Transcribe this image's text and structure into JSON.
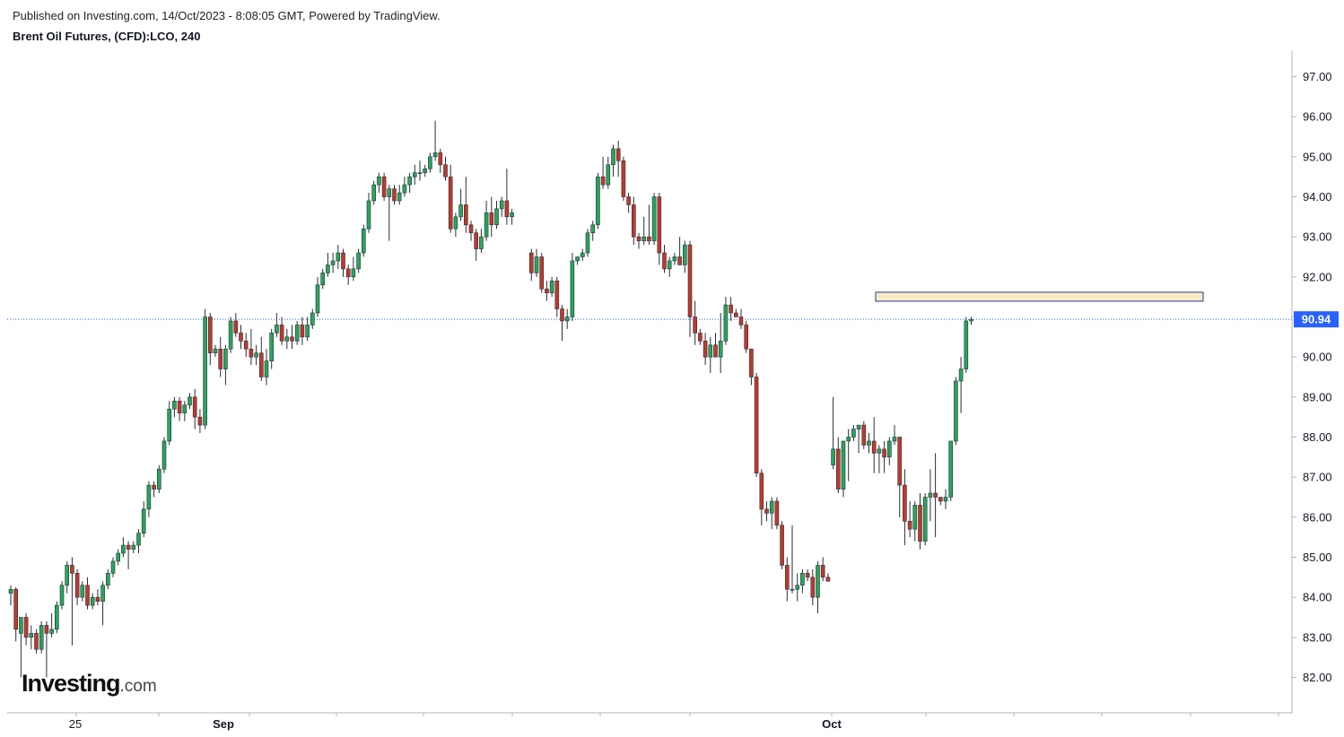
{
  "header": {
    "published": "Published on Investing.com, 14/Oct/2023 - 8:08:05 GMT, Powered by TradingView.",
    "symbol": "Brent Oil Futures, (CFD):LCO, 240"
  },
  "logo": {
    "brand": "Investing",
    "suffix": ".com"
  },
  "colors": {
    "up": "#26a65b",
    "down": "#c0392b",
    "current_line": "#2962ff",
    "zone_fill": "#fbe9c8",
    "zone_border": "#1f3a93",
    "price_tag": "#2962ff"
  },
  "chart_data": {
    "type": "candlestick",
    "title": "Brent Oil Futures, (CFD):LCO, 240",
    "ylim": [
      81.2,
      97.7
    ],
    "y_ticks": [
      "82.00",
      "83.00",
      "84.00",
      "85.00",
      "86.00",
      "87.00",
      "88.00",
      "89.00",
      "90.00",
      "91.00",
      "92.00",
      "93.00",
      "94.00",
      "95.00",
      "96.00",
      "97.00"
    ],
    "x_tick_labels": [
      "25",
      "Sep",
      "Oct"
    ],
    "current_price": 90.94,
    "current_price_label": "90.94",
    "resistance_zone": [
      91.35,
      91.55
    ],
    "candles": [
      {
        "o": 84.1,
        "h": 84.3,
        "l": 83.8,
        "c": 84.2
      },
      {
        "o": 84.2,
        "h": 84.25,
        "l": 82.9,
        "c": 83.2
      },
      {
        "o": 83.1,
        "h": 83.5,
        "l": 82.0,
        "c": 83.5
      },
      {
        "o": 83.5,
        "h": 83.6,
        "l": 82.8,
        "c": 83.0
      },
      {
        "o": 83.0,
        "h": 83.3,
        "l": 82.7,
        "c": 83.1
      },
      {
        "o": 83.1,
        "h": 83.2,
        "l": 82.6,
        "c": 82.7
      },
      {
        "o": 82.7,
        "h": 83.4,
        "l": 82.6,
        "c": 83.3
      },
      {
        "o": 83.3,
        "h": 83.4,
        "l": 82.0,
        "c": 83.1
      },
      {
        "o": 83.1,
        "h": 83.6,
        "l": 83.0,
        "c": 83.2
      },
      {
        "o": 83.2,
        "h": 83.9,
        "l": 83.1,
        "c": 83.8
      },
      {
        "o": 83.8,
        "h": 84.4,
        "l": 83.7,
        "c": 84.3
      },
      {
        "o": 84.3,
        "h": 84.9,
        "l": 84.1,
        "c": 84.8
      },
      {
        "o": 84.8,
        "h": 85.0,
        "l": 82.8,
        "c": 84.6
      },
      {
        "o": 84.6,
        "h": 84.7,
        "l": 83.8,
        "c": 84.0
      },
      {
        "o": 84.0,
        "h": 84.4,
        "l": 83.9,
        "c": 84.3
      },
      {
        "o": 84.3,
        "h": 84.5,
        "l": 83.7,
        "c": 83.8
      },
      {
        "o": 83.8,
        "h": 84.1,
        "l": 83.7,
        "c": 84.0
      },
      {
        "o": 84.0,
        "h": 84.2,
        "l": 83.8,
        "c": 83.9
      },
      {
        "o": 83.9,
        "h": 84.4,
        "l": 83.3,
        "c": 84.3
      },
      {
        "o": 84.3,
        "h": 84.7,
        "l": 84.2,
        "c": 84.6
      },
      {
        "o": 84.6,
        "h": 85.0,
        "l": 84.5,
        "c": 84.9
      },
      {
        "o": 84.9,
        "h": 85.2,
        "l": 84.8,
        "c": 85.1
      },
      {
        "o": 85.1,
        "h": 85.5,
        "l": 85.0,
        "c": 85.3
      },
      {
        "o": 85.3,
        "h": 85.4,
        "l": 84.7,
        "c": 85.2
      },
      {
        "o": 85.2,
        "h": 85.4,
        "l": 85.1,
        "c": 85.3
      },
      {
        "o": 85.3,
        "h": 85.7,
        "l": 85.1,
        "c": 85.6
      },
      {
        "o": 85.6,
        "h": 86.4,
        "l": 85.5,
        "c": 86.2
      },
      {
        "o": 86.2,
        "h": 86.9,
        "l": 86.0,
        "c": 86.8
      },
      {
        "o": 86.8,
        "h": 86.9,
        "l": 86.5,
        "c": 86.7
      },
      {
        "o": 86.7,
        "h": 87.3,
        "l": 86.6,
        "c": 87.2
      },
      {
        "o": 87.2,
        "h": 88.0,
        "l": 87.1,
        "c": 87.9
      },
      {
        "o": 87.9,
        "h": 88.9,
        "l": 87.8,
        "c": 88.7
      },
      {
        "o": 88.7,
        "h": 89.0,
        "l": 88.5,
        "c": 88.9
      },
      {
        "o": 88.9,
        "h": 89.0,
        "l": 88.4,
        "c": 88.6
      },
      {
        "o": 88.6,
        "h": 88.9,
        "l": 88.4,
        "c": 88.8
      },
      {
        "o": 88.8,
        "h": 89.1,
        "l": 88.7,
        "c": 89.0
      },
      {
        "o": 89.0,
        "h": 89.2,
        "l": 88.2,
        "c": 88.5
      },
      {
        "o": 88.5,
        "h": 88.7,
        "l": 88.1,
        "c": 88.3
      },
      {
        "o": 88.3,
        "h": 91.2,
        "l": 88.2,
        "c": 91.0
      },
      {
        "o": 91.0,
        "h": 91.1,
        "l": 89.8,
        "c": 90.1
      },
      {
        "o": 90.1,
        "h": 90.3,
        "l": 90.0,
        "c": 90.2
      },
      {
        "o": 90.2,
        "h": 90.5,
        "l": 89.5,
        "c": 89.7
      },
      {
        "o": 89.7,
        "h": 90.3,
        "l": 89.3,
        "c": 90.2
      },
      {
        "o": 90.2,
        "h": 91.0,
        "l": 90.1,
        "c": 90.9
      },
      {
        "o": 90.9,
        "h": 91.1,
        "l": 90.5,
        "c": 90.6
      },
      {
        "o": 90.6,
        "h": 90.8,
        "l": 90.2,
        "c": 90.4
      },
      {
        "o": 90.4,
        "h": 90.6,
        "l": 90.0,
        "c": 90.2
      },
      {
        "o": 90.2,
        "h": 90.7,
        "l": 89.8,
        "c": 90.0
      },
      {
        "o": 90.0,
        "h": 90.3,
        "l": 89.8,
        "c": 90.1
      },
      {
        "o": 90.1,
        "h": 90.5,
        "l": 89.4,
        "c": 89.5
      },
      {
        "o": 89.5,
        "h": 90.2,
        "l": 89.3,
        "c": 89.9
      },
      {
        "o": 89.9,
        "h": 90.7,
        "l": 89.7,
        "c": 90.6
      },
      {
        "o": 90.6,
        "h": 91.1,
        "l": 90.5,
        "c": 90.8
      },
      {
        "o": 90.8,
        "h": 91.0,
        "l": 90.3,
        "c": 90.4
      },
      {
        "o": 90.4,
        "h": 90.7,
        "l": 90.2,
        "c": 90.5
      },
      {
        "o": 90.5,
        "h": 90.8,
        "l": 90.2,
        "c": 90.4
      },
      {
        "o": 90.4,
        "h": 90.9,
        "l": 90.3,
        "c": 90.8
      },
      {
        "o": 90.8,
        "h": 91.0,
        "l": 90.3,
        "c": 90.5
      },
      {
        "o": 90.5,
        "h": 91.0,
        "l": 90.4,
        "c": 90.8
      },
      {
        "o": 90.8,
        "h": 91.2,
        "l": 90.7,
        "c": 91.1
      },
      {
        "o": 91.1,
        "h": 92.0,
        "l": 91.0,
        "c": 91.8
      },
      {
        "o": 91.8,
        "h": 92.2,
        "l": 91.7,
        "c": 92.1
      },
      {
        "o": 92.1,
        "h": 92.6,
        "l": 92.0,
        "c": 92.3
      },
      {
        "o": 92.3,
        "h": 92.6,
        "l": 92.1,
        "c": 92.4
      },
      {
        "o": 92.4,
        "h": 92.8,
        "l": 92.2,
        "c": 92.6
      },
      {
        "o": 92.6,
        "h": 92.7,
        "l": 92.0,
        "c": 92.2
      },
      {
        "o": 92.2,
        "h": 92.3,
        "l": 91.8,
        "c": 92.0
      },
      {
        "o": 92.0,
        "h": 92.5,
        "l": 91.9,
        "c": 92.2
      },
      {
        "o": 92.2,
        "h": 92.7,
        "l": 92.1,
        "c": 92.6
      },
      {
        "o": 92.6,
        "h": 93.3,
        "l": 92.5,
        "c": 93.2
      },
      {
        "o": 93.2,
        "h": 94.1,
        "l": 93.1,
        "c": 93.9
      },
      {
        "o": 93.9,
        "h": 94.4,
        "l": 93.8,
        "c": 94.3
      },
      {
        "o": 94.3,
        "h": 94.6,
        "l": 94.1,
        "c": 94.5
      },
      {
        "o": 94.5,
        "h": 94.6,
        "l": 93.9,
        "c": 94.0
      },
      {
        "o": 94.0,
        "h": 94.3,
        "l": 92.9,
        "c": 94.2
      },
      {
        "o": 94.2,
        "h": 94.3,
        "l": 93.8,
        "c": 93.9
      },
      {
        "o": 93.9,
        "h": 94.3,
        "l": 93.8,
        "c": 94.1
      },
      {
        "o": 94.1,
        "h": 94.5,
        "l": 94.0,
        "c": 94.3
      },
      {
        "o": 94.3,
        "h": 94.6,
        "l": 94.1,
        "c": 94.5
      },
      {
        "o": 94.5,
        "h": 94.8,
        "l": 94.3,
        "c": 94.6
      },
      {
        "o": 94.6,
        "h": 94.9,
        "l": 94.4,
        "c": 94.6
      },
      {
        "o": 94.6,
        "h": 94.8,
        "l": 94.5,
        "c": 94.7
      },
      {
        "o": 94.7,
        "h": 95.1,
        "l": 94.6,
        "c": 95.0
      },
      {
        "o": 95.0,
        "h": 95.9,
        "l": 94.9,
        "c": 95.1
      },
      {
        "o": 95.1,
        "h": 95.2,
        "l": 94.6,
        "c": 94.8
      },
      {
        "o": 94.8,
        "h": 95.0,
        "l": 94.4,
        "c": 94.5
      },
      {
        "o": 94.5,
        "h": 94.8,
        "l": 93.1,
        "c": 93.2
      },
      {
        "o": 93.2,
        "h": 93.6,
        "l": 93.0,
        "c": 93.5
      },
      {
        "o": 93.5,
        "h": 94.2,
        "l": 93.4,
        "c": 93.8
      },
      {
        "o": 93.8,
        "h": 94.5,
        "l": 93.1,
        "c": 93.3
      },
      {
        "o": 93.3,
        "h": 93.4,
        "l": 92.9,
        "c": 93.1
      },
      {
        "o": 93.1,
        "h": 93.2,
        "l": 92.4,
        "c": 92.7
      },
      {
        "o": 92.7,
        "h": 93.2,
        "l": 92.6,
        "c": 93.0
      },
      {
        "o": 93.0,
        "h": 93.9,
        "l": 92.9,
        "c": 93.6
      },
      {
        "o": 93.6,
        "h": 94.0,
        "l": 93.0,
        "c": 93.3
      },
      {
        "o": 93.3,
        "h": 93.9,
        "l": 93.2,
        "c": 93.7
      },
      {
        "o": 93.7,
        "h": 94.0,
        "l": 93.5,
        "c": 93.9
      },
      {
        "o": 93.9,
        "h": 94.7,
        "l": 93.3,
        "c": 93.5
      },
      {
        "o": 93.5,
        "h": 93.7,
        "l": 93.3,
        "c": 93.6
      },
      {
        "o": 92.6,
        "h": 92.7,
        "l": 91.9,
        "c": 92.1
      },
      {
        "o": 92.1,
        "h": 92.7,
        "l": 92.0,
        "c": 92.5
      },
      {
        "o": 92.5,
        "h": 92.6,
        "l": 91.6,
        "c": 91.7
      },
      {
        "o": 91.7,
        "h": 91.9,
        "l": 91.4,
        "c": 91.6
      },
      {
        "o": 91.6,
        "h": 92.0,
        "l": 91.5,
        "c": 91.9
      },
      {
        "o": 91.9,
        "h": 92.0,
        "l": 91.0,
        "c": 91.2
      },
      {
        "o": 91.2,
        "h": 91.3,
        "l": 90.4,
        "c": 90.9
      },
      {
        "o": 90.9,
        "h": 91.2,
        "l": 90.7,
        "c": 91.0
      },
      {
        "o": 91.0,
        "h": 92.6,
        "l": 90.9,
        "c": 92.4
      },
      {
        "o": 92.4,
        "h": 92.5,
        "l": 92.3,
        "c": 92.5
      },
      {
        "o": 92.5,
        "h": 92.7,
        "l": 92.4,
        "c": 92.6
      },
      {
        "o": 92.6,
        "h": 93.2,
        "l": 92.5,
        "c": 93.1
      },
      {
        "o": 93.1,
        "h": 93.4,
        "l": 92.9,
        "c": 93.3
      },
      {
        "o": 93.3,
        "h": 94.6,
        "l": 93.2,
        "c": 94.5
      },
      {
        "o": 94.5,
        "h": 95.0,
        "l": 94.2,
        "c": 94.3
      },
      {
        "o": 94.3,
        "h": 95.0,
        "l": 94.2,
        "c": 94.8
      },
      {
        "o": 94.8,
        "h": 95.3,
        "l": 94.5,
        "c": 95.2
      },
      {
        "o": 95.2,
        "h": 95.4,
        "l": 94.5,
        "c": 94.9
      },
      {
        "o": 94.9,
        "h": 95.0,
        "l": 93.9,
        "c": 94.0
      },
      {
        "o": 94.0,
        "h": 94.1,
        "l": 93.6,
        "c": 93.8
      },
      {
        "o": 93.8,
        "h": 94.0,
        "l": 92.8,
        "c": 93.0
      },
      {
        "o": 93.0,
        "h": 93.1,
        "l": 92.7,
        "c": 92.9
      },
      {
        "o": 92.9,
        "h": 93.5,
        "l": 92.8,
        "c": 93.0
      },
      {
        "o": 93.0,
        "h": 93.8,
        "l": 92.8,
        "c": 92.9
      },
      {
        "o": 92.9,
        "h": 94.1,
        "l": 92.8,
        "c": 94.0
      },
      {
        "o": 94.0,
        "h": 94.1,
        "l": 92.3,
        "c": 92.6
      },
      {
        "o": 92.6,
        "h": 92.8,
        "l": 92.1,
        "c": 92.2
      },
      {
        "o": 92.2,
        "h": 92.5,
        "l": 92.0,
        "c": 92.4
      },
      {
        "o": 92.4,
        "h": 92.6,
        "l": 92.3,
        "c": 92.5
      },
      {
        "o": 92.5,
        "h": 93.0,
        "l": 92.3,
        "c": 92.3
      },
      {
        "o": 92.3,
        "h": 92.9,
        "l": 92.1,
        "c": 92.8
      },
      {
        "o": 92.8,
        "h": 92.9,
        "l": 90.5,
        "c": 91.0
      },
      {
        "o": 91.0,
        "h": 91.4,
        "l": 90.3,
        "c": 90.6
      },
      {
        "o": 90.6,
        "h": 90.7,
        "l": 90.3,
        "c": 90.4
      },
      {
        "o": 90.4,
        "h": 90.6,
        "l": 89.8,
        "c": 90.0
      },
      {
        "o": 90.0,
        "h": 90.5,
        "l": 89.6,
        "c": 90.3
      },
      {
        "o": 90.3,
        "h": 90.6,
        "l": 90.0,
        "c": 90.0
      },
      {
        "o": 90.0,
        "h": 91.1,
        "l": 89.6,
        "c": 90.4
      },
      {
        "o": 90.4,
        "h": 91.5,
        "l": 90.3,
        "c": 91.3
      },
      {
        "o": 91.3,
        "h": 91.5,
        "l": 90.9,
        "c": 91.1
      },
      {
        "o": 91.1,
        "h": 91.2,
        "l": 91.0,
        "c": 91.0
      },
      {
        "o": 91.0,
        "h": 91.2,
        "l": 90.7,
        "c": 90.8
      },
      {
        "o": 90.8,
        "h": 90.9,
        "l": 90.1,
        "c": 90.2
      },
      {
        "o": 90.2,
        "h": 90.2,
        "l": 89.3,
        "c": 89.5
      },
      {
        "o": 89.5,
        "h": 89.6,
        "l": 87.0,
        "c": 87.1
      },
      {
        "o": 87.1,
        "h": 87.2,
        "l": 85.8,
        "c": 86.2
      },
      {
        "o": 86.2,
        "h": 86.4,
        "l": 85.9,
        "c": 86.1
      },
      {
        "o": 86.1,
        "h": 86.5,
        "l": 85.7,
        "c": 86.4
      },
      {
        "o": 86.4,
        "h": 86.5,
        "l": 85.7,
        "c": 85.8
      },
      {
        "o": 85.8,
        "h": 85.9,
        "l": 84.7,
        "c": 84.8
      },
      {
        "o": 84.8,
        "h": 85.0,
        "l": 83.9,
        "c": 84.2
      },
      {
        "o": 84.2,
        "h": 85.8,
        "l": 84.1,
        "c": 84.2
      },
      {
        "o": 84.2,
        "h": 84.6,
        "l": 83.9,
        "c": 84.3
      },
      {
        "o": 84.3,
        "h": 84.7,
        "l": 84.1,
        "c": 84.6
      },
      {
        "o": 84.6,
        "h": 84.7,
        "l": 84.4,
        "c": 84.5
      },
      {
        "o": 84.5,
        "h": 84.7,
        "l": 83.8,
        "c": 84.0
      },
      {
        "o": 84.0,
        "h": 84.9,
        "l": 83.6,
        "c": 84.8
      },
      {
        "o": 84.8,
        "h": 85.0,
        "l": 84.4,
        "c": 84.5
      },
      {
        "o": 84.5,
        "h": 84.6,
        "l": 84.4,
        "c": 84.4
      },
      {
        "o": 87.3,
        "h": 89.0,
        "l": 87.2,
        "c": 87.7
      },
      {
        "o": 87.7,
        "h": 88.0,
        "l": 86.6,
        "c": 86.7
      },
      {
        "o": 86.7,
        "h": 87.9,
        "l": 86.5,
        "c": 87.9
      },
      {
        "o": 87.9,
        "h": 88.2,
        "l": 86.9,
        "c": 88.0
      },
      {
        "o": 88.0,
        "h": 88.3,
        "l": 87.9,
        "c": 88.2
      },
      {
        "o": 88.2,
        "h": 88.3,
        "l": 87.6,
        "c": 88.3
      },
      {
        "o": 88.3,
        "h": 88.4,
        "l": 87.7,
        "c": 87.8
      },
      {
        "o": 87.8,
        "h": 88.1,
        "l": 87.6,
        "c": 87.9
      },
      {
        "o": 87.9,
        "h": 88.5,
        "l": 87.1,
        "c": 87.6
      },
      {
        "o": 87.6,
        "h": 87.8,
        "l": 87.1,
        "c": 87.7
      },
      {
        "o": 87.7,
        "h": 87.9,
        "l": 87.1,
        "c": 87.5
      },
      {
        "o": 87.5,
        "h": 88.0,
        "l": 87.3,
        "c": 87.9
      },
      {
        "o": 87.9,
        "h": 88.3,
        "l": 87.8,
        "c": 88.0
      },
      {
        "o": 88.0,
        "h": 88.0,
        "l": 86.0,
        "c": 86.8
      },
      {
        "o": 86.8,
        "h": 87.2,
        "l": 85.3,
        "c": 85.9
      },
      {
        "o": 85.9,
        "h": 86.4,
        "l": 85.5,
        "c": 85.7
      },
      {
        "o": 85.7,
        "h": 86.4,
        "l": 85.4,
        "c": 86.3
      },
      {
        "o": 86.3,
        "h": 86.6,
        "l": 85.2,
        "c": 85.4
      },
      {
        "o": 85.4,
        "h": 86.6,
        "l": 85.3,
        "c": 86.5
      },
      {
        "o": 86.5,
        "h": 87.2,
        "l": 85.9,
        "c": 86.6
      },
      {
        "o": 86.6,
        "h": 87.6,
        "l": 85.5,
        "c": 86.5
      },
      {
        "o": 86.5,
        "h": 86.5,
        "l": 86.3,
        "c": 86.4
      },
      {
        "o": 86.4,
        "h": 86.7,
        "l": 86.2,
        "c": 86.5
      },
      {
        "o": 86.5,
        "h": 87.9,
        "l": 86.4,
        "c": 87.9
      },
      {
        "o": 87.9,
        "h": 89.5,
        "l": 87.8,
        "c": 89.4
      },
      {
        "o": 89.4,
        "h": 90.0,
        "l": 88.6,
        "c": 89.7
      },
      {
        "o": 89.7,
        "h": 91.0,
        "l": 89.6,
        "c": 90.9
      },
      {
        "o": 90.9,
        "h": 91.0,
        "l": 90.8,
        "c": 90.94
      }
    ]
  }
}
